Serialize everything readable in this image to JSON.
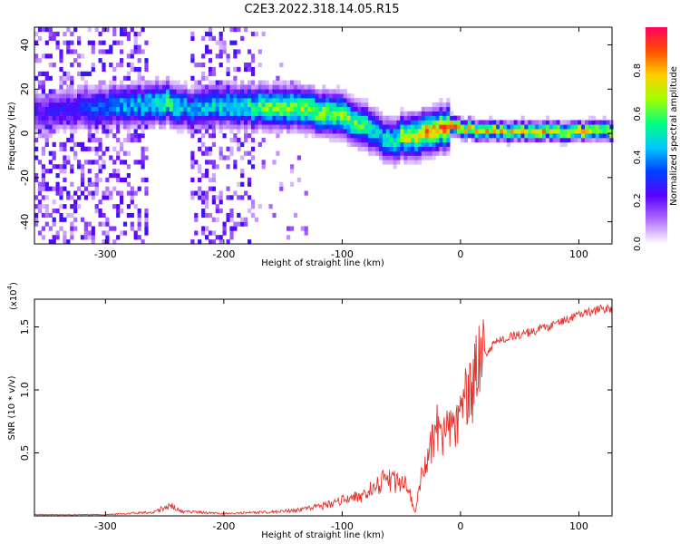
{
  "title": "C2E3.2022.318.14.05.R15",
  "chart_data": [
    {
      "type": "heatmap",
      "xlabel": "Height of straight line (km)",
      "ylabel": "Frequency (Hz)",
      "xlim": [
        -360,
        128
      ],
      "ylim": [
        -50,
        48
      ],
      "x_ticks": [
        -300,
        -200,
        -100,
        0,
        100
      ],
      "y_ticks": [
        -40,
        -20,
        0,
        20,
        40
      ],
      "colorbar": {
        "label": "Normalized spectral amplitude",
        "range": [
          0,
          1
        ],
        "ticks": [
          "0.0",
          "0.2",
          "0.4",
          "0.6",
          "0.8"
        ],
        "colors": [
          "#ffffff",
          "#b070ff",
          "#5a00ff",
          "#0040ff",
          "#00c8ff",
          "#00ff80",
          "#a0ff00",
          "#ffd000",
          "#ff5000",
          "#ff0060"
        ]
      },
      "ridge": {
        "description_points_x": [
          -360,
          -330,
          -300,
          -270,
          -250,
          -230,
          -210,
          -190,
          -160,
          -130,
          -100,
          -85,
          -70,
          -60,
          -50,
          -40,
          -30,
          -20,
          -10,
          0,
          30,
          60,
          100,
          128
        ],
        "frequency_hz": [
          8,
          10,
          11,
          12,
          13,
          10,
          12,
          11,
          11,
          10,
          7,
          3,
          -2,
          -5,
          -2,
          -3,
          0,
          1,
          2,
          1,
          0,
          0,
          0,
          0
        ],
        "peak_amplitude": [
          0.25,
          0.3,
          0.4,
          0.5,
          0.6,
          0.45,
          0.5,
          0.55,
          0.65,
          0.7,
          0.7,
          0.6,
          0.5,
          0.55,
          0.7,
          0.8,
          0.85,
          0.9,
          0.9,
          0.85,
          0.8,
          0.8,
          0.8,
          0.8
        ]
      },
      "scatter_bands": [
        [
          -360,
          -265
        ],
        [
          -230,
          -175
        ]
      ],
      "scatter_sparse_band": [
        -175,
        -130
      ]
    },
    {
      "type": "line",
      "color": "#e8302a",
      "xlabel": "Height of straight line (km)",
      "ylabel": "SNR (10 * v/v)",
      "y_multiplier": "(x10",
      "y_multiplier_exp": "4",
      "y_multiplier_close": ")",
      "xlim": [
        -360,
        128
      ],
      "ylim": [
        0,
        17200
      ],
      "x_ticks": [
        -300,
        -200,
        -100,
        0,
        100
      ],
      "y_ticks": [
        "0.5",
        "1.0",
        "1.5"
      ],
      "y_tick_values": [
        5000,
        10000,
        15000
      ],
      "series": [
        {
          "x": [
            -360,
            -300,
            -260,
            -245,
            -235,
            -200,
            -150,
            -120,
            -100,
            -80,
            -65,
            -55,
            -45,
            -38,
            -33,
            -28,
            -25,
            -20,
            -15,
            -10,
            -5,
            0,
            5,
            10,
            15,
            20,
            30,
            40,
            60,
            80,
            90,
            95,
            100,
            110,
            120,
            128
          ],
          "y": [
            80,
            80,
            250,
            700,
            300,
            150,
            300,
            600,
            1000,
            1500,
            2400,
            2200,
            2000,
            200,
            3500,
            4500,
            5500,
            7000,
            6000,
            7000,
            6500,
            8000,
            9500,
            10000,
            12000,
            12800,
            13800,
            14200,
            14600,
            15200,
            15600,
            15800,
            16000,
            16200,
            16500,
            16300
          ]
        }
      ]
    }
  ]
}
